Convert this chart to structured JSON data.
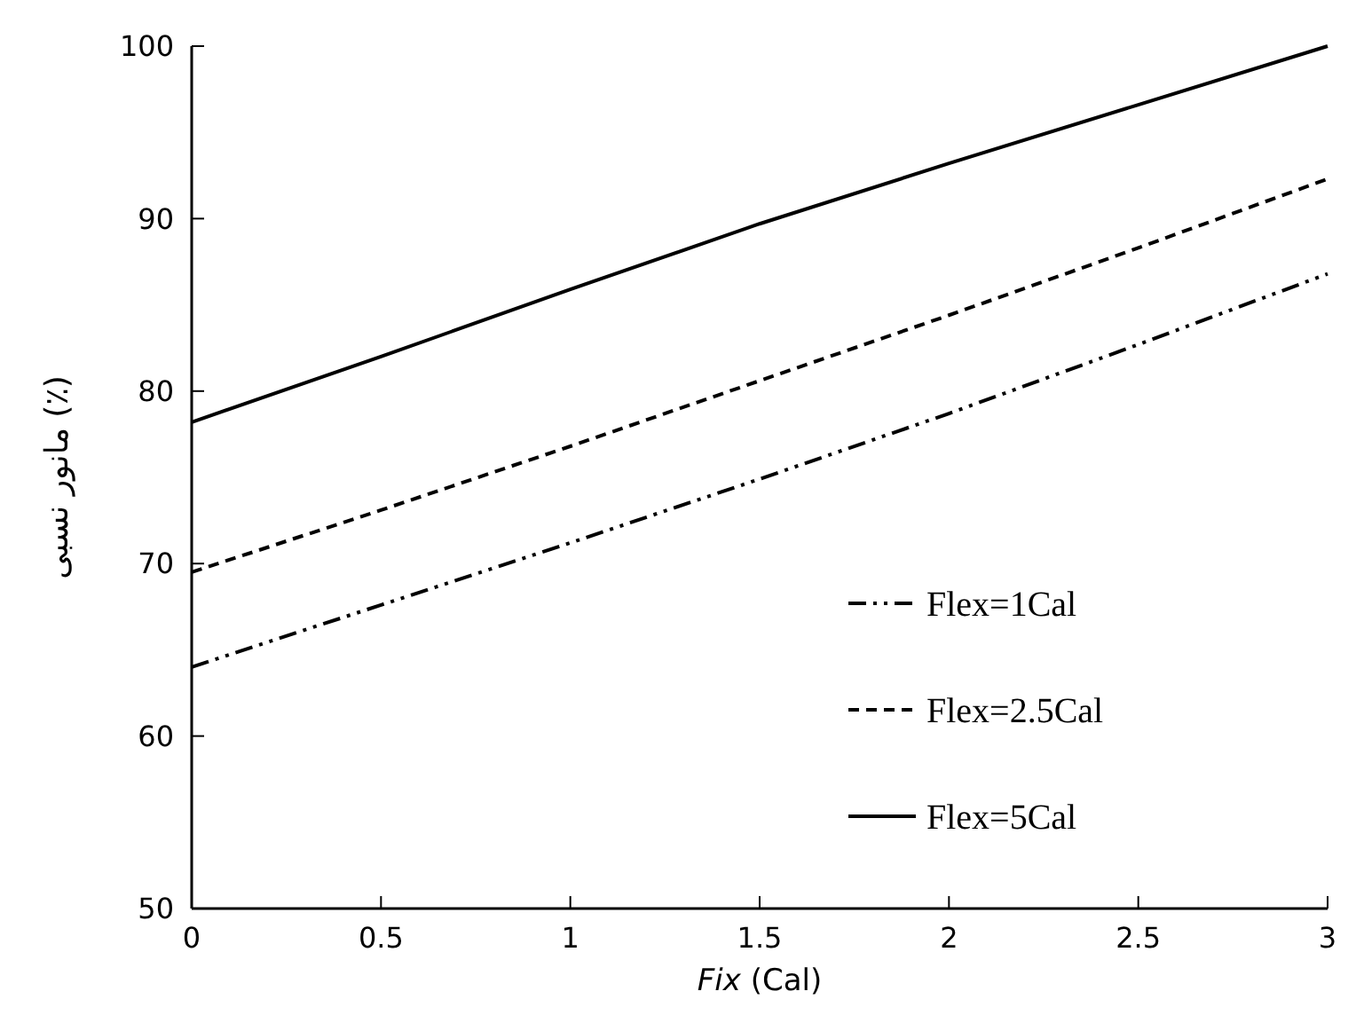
{
  "chart_data": {
    "type": "line",
    "xlabel": "Fix (Cal)",
    "ylabel": "مانور نسبی (٪)",
    "x": [
      0,
      0.5,
      1,
      1.5,
      2,
      2.5,
      3
    ],
    "series": [
      {
        "name": "Flex=1Cal",
        "color": "#000000",
        "line_style": "dashdot",
        "values": [
          64.0,
          67.6,
          71.2,
          74.9,
          78.7,
          82.7,
          86.8
        ]
      },
      {
        "name": "Flex=2.5Cal",
        "color": "#000000",
        "line_style": "dashed",
        "values": [
          69.5,
          73.1,
          76.8,
          80.6,
          84.4,
          88.3,
          92.3
        ]
      },
      {
        "name": "Flex=5Cal",
        "color": "#000000",
        "line_style": "solid",
        "values": [
          78.2,
          82.0,
          85.9,
          89.7,
          93.2,
          96.6,
          100
        ]
      }
    ],
    "xlim": [
      0,
      3
    ],
    "xticks": [
      0,
      0.5,
      1,
      1.5,
      2,
      2.5,
      3
    ],
    "ylim": [
      50,
      100
    ],
    "yticks": [
      50,
      60,
      70,
      80,
      90,
      100
    ],
    "grid": false,
    "legend": "bottom right",
    "marker": "none"
  }
}
